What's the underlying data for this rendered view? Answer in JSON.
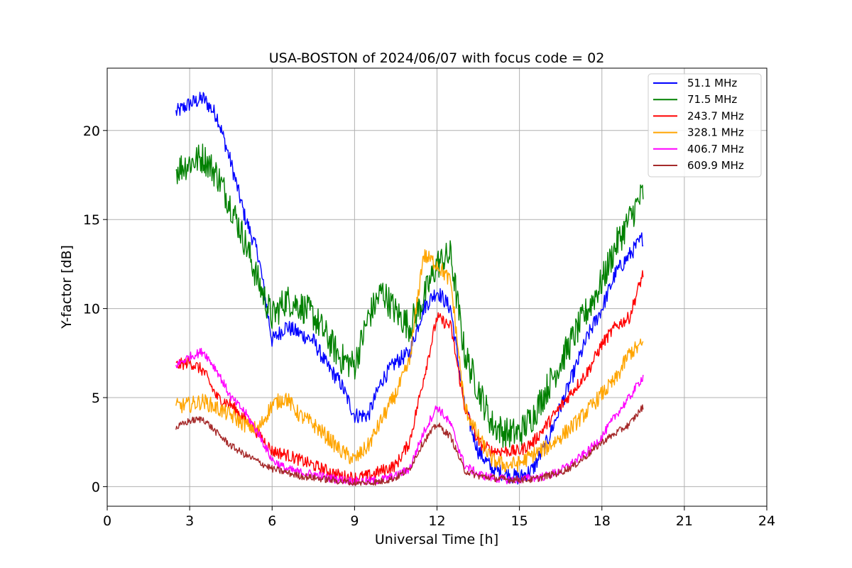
{
  "chart_data": {
    "type": "line",
    "title": "USA-BOSTON of 2024/06/07 with focus code = 02",
    "xlabel": "Universal Time [h]",
    "ylabel": "Y-factor [dB]",
    "xlim": [
      0,
      24
    ],
    "ylim": [
      -1.1,
      23.5
    ],
    "xticks": [
      0,
      3,
      6,
      9,
      12,
      15,
      18,
      21,
      24
    ],
    "xtick_labels": [
      "0",
      "3",
      "6",
      "9",
      "12",
      "15",
      "18",
      "21",
      "24"
    ],
    "yticks": [
      0,
      5,
      10,
      15,
      20
    ],
    "ytick_labels": [
      "0",
      "5",
      "10",
      "15",
      "20"
    ],
    "grid": true,
    "legend_position": "top-right",
    "x": [
      2.5,
      3.0,
      3.5,
      4.0,
      4.5,
      5.0,
      5.5,
      6.0,
      6.5,
      7.0,
      7.5,
      8.0,
      8.5,
      9.0,
      9.5,
      10.0,
      10.5,
      11.0,
      11.5,
      12.0,
      12.5,
      13.0,
      13.5,
      14.0,
      14.5,
      15.0,
      15.5,
      16.0,
      16.5,
      17.0,
      17.5,
      18.0,
      18.5,
      19.0,
      19.5
    ],
    "series": [
      {
        "name": " 51.1 MHz",
        "color": "#0000ff",
        "noise": 0.45,
        "values": [
          21.0,
          21.5,
          21.8,
          20.8,
          18.2,
          15.2,
          13.0,
          8.2,
          9.0,
          8.6,
          8.2,
          6.8,
          5.8,
          4.0,
          4.0,
          6.0,
          7.0,
          7.5,
          10.0,
          11.0,
          10.0,
          4.5,
          2.0,
          1.0,
          0.7,
          0.5,
          1.0,
          2.5,
          4.5,
          6.5,
          8.5,
          10.0,
          12.0,
          13.0,
          14.0
        ]
      },
      {
        "name": " 71.5 MHz",
        "color": "#008000",
        "noise": 0.9,
        "values": [
          17.8,
          18.2,
          18.5,
          17.5,
          15.8,
          13.8,
          11.5,
          9.5,
          10.5,
          10.2,
          9.6,
          8.4,
          7.2,
          6.8,
          9.5,
          11.0,
          9.8,
          9.0,
          10.5,
          12.5,
          13.0,
          7.5,
          5.5,
          3.5,
          3.0,
          3.0,
          4.0,
          5.5,
          7.0,
          8.5,
          10.0,
          11.5,
          13.5,
          15.0,
          16.5
        ]
      },
      {
        "name": "243.7 MHz",
        "color": "#ff0000",
        "noise": 0.35,
        "values": [
          6.8,
          7.0,
          6.5,
          5.0,
          4.6,
          3.8,
          3.0,
          2.0,
          1.8,
          1.5,
          1.2,
          0.9,
          0.6,
          0.5,
          0.6,
          0.9,
          1.2,
          2.5,
          6.0,
          9.5,
          9.0,
          4.5,
          2.5,
          2.0,
          2.0,
          2.0,
          2.5,
          3.5,
          4.5,
          5.5,
          6.5,
          8.0,
          9.0,
          9.5,
          12.0
        ]
      },
      {
        "name": "328.1 MHz",
        "color": "#ffa500",
        "noise": 0.45,
        "values": [
          4.5,
          4.6,
          4.8,
          4.4,
          4.0,
          3.5,
          3.2,
          4.6,
          5.0,
          4.0,
          3.5,
          2.8,
          2.0,
          1.5,
          2.3,
          3.8,
          5.2,
          7.0,
          13.0,
          12.5,
          11.5,
          4.5,
          2.8,
          1.5,
          1.2,
          1.3,
          1.8,
          2.2,
          2.8,
          3.5,
          4.3,
          5.2,
          6.0,
          7.5,
          8.0
        ]
      },
      {
        "name": "406.7 MHz",
        "color": "#ff00ff",
        "noise": 0.25,
        "values": [
          6.8,
          7.3,
          7.6,
          6.5,
          5.0,
          4.2,
          3.0,
          1.5,
          1.0,
          0.8,
          0.7,
          0.5,
          0.4,
          0.3,
          0.3,
          0.4,
          0.6,
          1.0,
          3.0,
          4.5,
          3.5,
          1.2,
          0.7,
          0.5,
          0.4,
          0.4,
          0.5,
          0.6,
          0.9,
          1.4,
          2.0,
          2.8,
          4.0,
          5.0,
          6.2
        ]
      },
      {
        "name": "609.9 MHz",
        "color": "#a52a2a",
        "noise": 0.2,
        "values": [
          3.3,
          3.7,
          3.8,
          3.0,
          2.3,
          1.8,
          1.4,
          1.0,
          0.8,
          0.6,
          0.5,
          0.4,
          0.3,
          0.2,
          0.2,
          0.3,
          0.5,
          1.0,
          2.5,
          3.5,
          2.8,
          0.9,
          0.6,
          0.5,
          0.4,
          0.4,
          0.4,
          0.6,
          0.8,
          1.2,
          1.8,
          2.5,
          3.0,
          3.5,
          4.5
        ]
      }
    ]
  }
}
